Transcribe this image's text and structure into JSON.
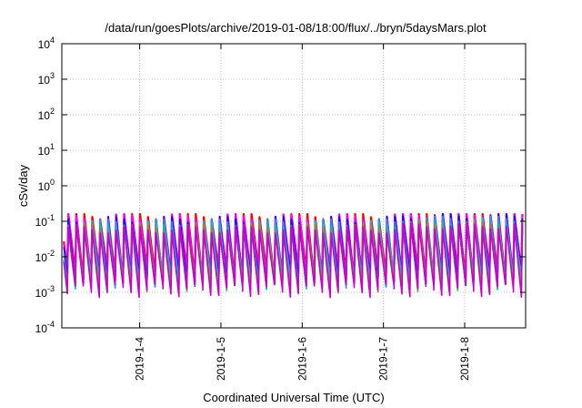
{
  "chart_data": {
    "type": "line",
    "title": "/data/run/goesPlots/archive/2019-01-08/18:00/flux/../bryn/5daysMars.plot",
    "xlabel": "Coordinated Universal Time (UTC)",
    "ylabel": "cSv/day",
    "y_scale": "log",
    "ylim": [
      0.0001,
      10000
    ],
    "y_ticks": [
      {
        "base": "10",
        "exp": "-4",
        "value": 0.0001
      },
      {
        "base": "10",
        "exp": "-3",
        "value": 0.001
      },
      {
        "base": "10",
        "exp": "-2",
        "value": 0.01
      },
      {
        "base": "10",
        "exp": "-1",
        "value": 0.1
      },
      {
        "base": "10",
        "exp": "0",
        "value": 1
      },
      {
        "base": "10",
        "exp": "1",
        "value": 10
      },
      {
        "base": "10",
        "exp": "2",
        "value": 100
      },
      {
        "base": "10",
        "exp": "3",
        "value": 1000
      },
      {
        "base": "10",
        "exp": "4",
        "value": 10000
      }
    ],
    "x_range": [
      "2019-01-03 01:00",
      "2019-01-08 18:00"
    ],
    "x_ticks": [
      "2019-1-4",
      "2019-1-5",
      "2019-1-6",
      "2019-1-7",
      "2019-1-8"
    ],
    "grid": true,
    "series_colors": [
      "#ff0000",
      "#ff00ff",
      "#0000ff",
      "#2a8cff",
      "#00c0c0",
      "#9a8a30",
      "#cc00cc"
    ],
    "periodic_envelope": {
      "cycles_per_day": 10.2,
      "peak_range": [
        0.06,
        0.15
      ],
      "trough_range": [
        0.0012,
        0.0035
      ]
    }
  }
}
